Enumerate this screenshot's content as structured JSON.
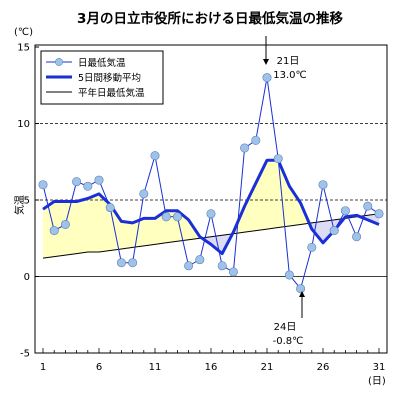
{
  "chart_data": {
    "type": "line",
    "title": "3月の日立市役所における日最低気温の推移",
    "ylabel": "気温",
    "yunit": "(℃)",
    "xunit": "(日)",
    "ylim": [
      -5,
      15
    ],
    "yticks": [
      -5,
      0,
      5,
      10,
      15
    ],
    "xlim": [
      1,
      31
    ],
    "xticks": [
      1,
      6,
      11,
      16,
      21,
      26,
      31
    ],
    "grid": "horizontal dashed at 5 and 10",
    "legend_position": "top-left",
    "x": [
      1,
      2,
      3,
      4,
      5,
      6,
      7,
      8,
      9,
      10,
      11,
      12,
      13,
      14,
      15,
      16,
      17,
      18,
      19,
      20,
      21,
      22,
      23,
      24,
      25,
      26,
      27,
      28,
      29,
      30,
      31
    ],
    "series": [
      {
        "name": "日最低気温",
        "color": "#1a2fd6",
        "marker": "#9fc3e8",
        "values": [
          6.0,
          3.0,
          3.4,
          6.2,
          5.9,
          6.3,
          4.5,
          0.9,
          0.9,
          5.4,
          7.9,
          3.9,
          3.9,
          0.7,
          1.1,
          4.1,
          0.7,
          0.3,
          8.4,
          8.9,
          13.0,
          7.7,
          0.1,
          -0.8,
          1.9,
          6.0,
          3.0,
          4.3,
          2.6,
          4.6,
          4.1
        ]
      },
      {
        "name": "5日間移動平均",
        "color": "#1a2fd6",
        "values": [
          4.4,
          4.9,
          4.9,
          4.9,
          5.1,
          5.4,
          4.7,
          3.6,
          3.5,
          3.8,
          3.8,
          4.3,
          4.3,
          3.7,
          2.6,
          2.1,
          1.5,
          2.9,
          4.6,
          6.1,
          7.6,
          7.6,
          5.9,
          4.8,
          3.1,
          2.2,
          3.0,
          3.9,
          4.0,
          3.7,
          3.4
        ]
      },
      {
        "name": "平年日最低気温",
        "color": "#000000",
        "values": [
          1.2,
          1.3,
          1.4,
          1.5,
          1.6,
          1.6,
          1.7,
          1.8,
          1.9,
          2.0,
          2.1,
          2.2,
          2.3,
          2.4,
          2.5,
          2.6,
          2.7,
          2.8,
          2.9,
          3.0,
          3.1,
          3.2,
          3.3,
          3.4,
          3.5,
          3.6,
          3.7,
          3.8,
          3.9,
          4.0,
          4.1
        ]
      }
    ],
    "fill_above_color": "#ffffc0",
    "fill_below_color": "#dcdcf5",
    "annotations": [
      {
        "day_label": "21日",
        "value_label": "13.0℃",
        "x": 21,
        "y": 13.0
      },
      {
        "day_label": "24日",
        "value_label": "-0.8℃",
        "x": 24,
        "y": -0.8
      }
    ]
  }
}
